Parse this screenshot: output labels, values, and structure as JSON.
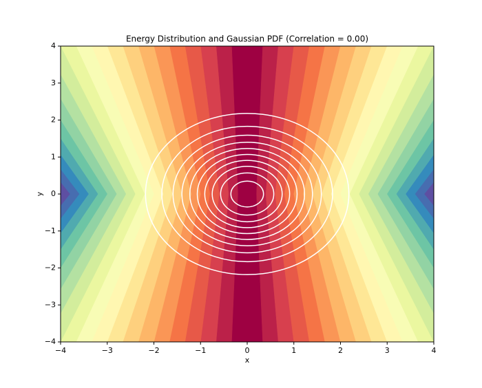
{
  "chart_data": {
    "type": "contour",
    "title": "Energy Distribution and Gaussian PDF (Correlation = 0.00)",
    "x_label": "x",
    "y_label": "y",
    "xlim": [
      -4,
      4
    ],
    "ylim": [
      -4,
      4
    ],
    "xticks": [
      {
        "value": -4,
        "label": "−4"
      },
      {
        "value": -3,
        "label": "−3"
      },
      {
        "value": -2,
        "label": "−2"
      },
      {
        "value": -1,
        "label": "−1"
      },
      0,
      1,
      2,
      3,
      4
    ],
    "yticks": [
      {
        "value": -4,
        "label": "−4"
      },
      {
        "value": -3,
        "label": "−3"
      },
      {
        "value": -2,
        "label": "−2"
      },
      {
        "value": -1,
        "label": "−1"
      },
      0,
      1,
      2,
      3,
      4
    ],
    "contour_color": "#ffffff",
    "contour_radii": [
      0.35,
      0.57,
      0.75,
      0.91,
      1.07,
      1.23,
      1.4,
      1.59,
      1.83,
      2.18
    ]
  }
}
